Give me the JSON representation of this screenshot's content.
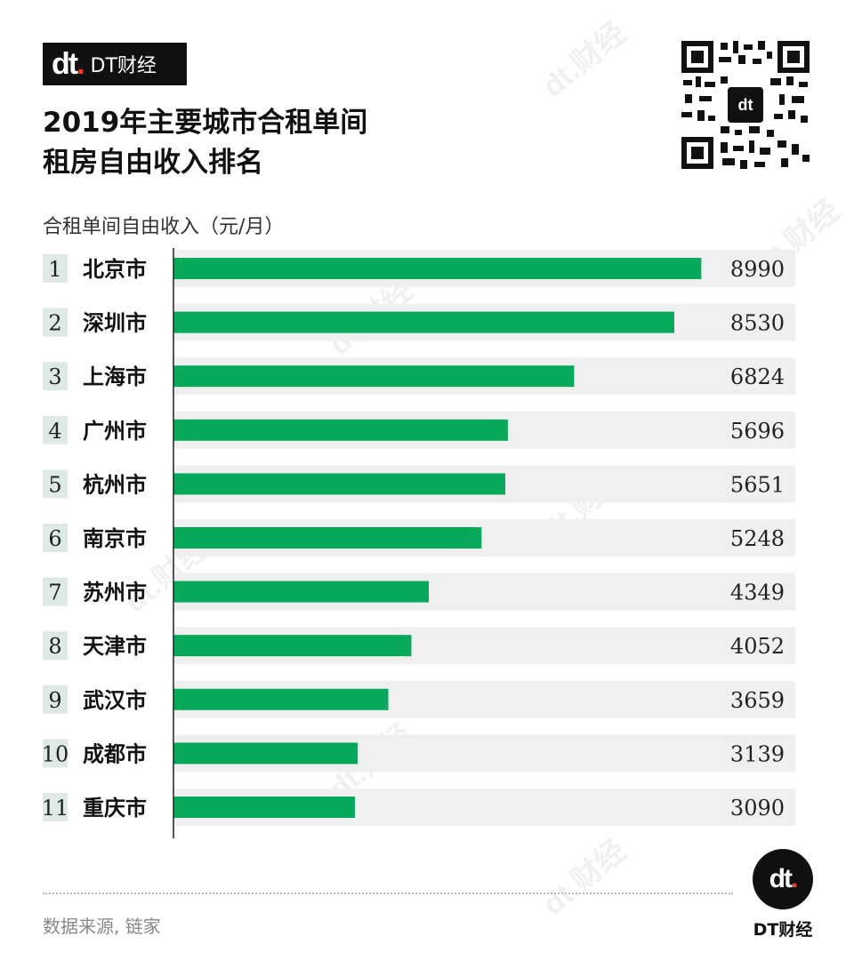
{
  "brand": {
    "name": "DT财经",
    "mark": "dt"
  },
  "title": "2019年主要城市合租单间\n租房自由收入排名",
  "chart_data": {
    "type": "bar",
    "orientation": "horizontal",
    "subtitle": "合租单间自由收入（元/月）",
    "ranks": [
      "1",
      "2",
      "3",
      "4",
      "5",
      "6",
      "7",
      "8",
      "9",
      "10",
      "11"
    ],
    "categories": [
      "北京市",
      "深圳市",
      "上海市",
      "广州市",
      "杭州市",
      "南京市",
      "苏州市",
      "天津市",
      "武汉市",
      "成都市",
      "重庆市"
    ],
    "values": [
      8990,
      8530,
      6824,
      5696,
      5651,
      5248,
      4349,
      4052,
      3659,
      3139,
      3090
    ],
    "xlim": [
      0,
      9000
    ],
    "grid": false,
    "colors": {
      "bar": "#06a85a",
      "row_bg": "#efefef",
      "rank_bg": "#dde9e2"
    }
  },
  "source": "数据来源, 链家",
  "watermark": "dt.财经"
}
